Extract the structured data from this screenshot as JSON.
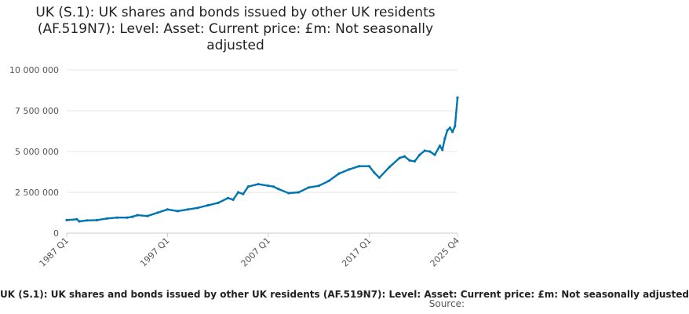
{
  "chart_data": {
    "type": "line",
    "title": "UK (S.1): UK shares and bonds issued by other UK residents (AF.519N7): Level: Asset: Current price: £m: Not seasonally adjusted",
    "xlabel": "",
    "ylabel": "",
    "ylim": [
      0,
      10000000
    ],
    "y_ticks": [
      0,
      2500000,
      5000000,
      7500000,
      10000000
    ],
    "y_tick_labels": [
      "0",
      "2 500 000",
      "5 000 000",
      "7 500 000",
      "10 000 000"
    ],
    "x_range": [
      "1987 Q1",
      "2025 Q4"
    ],
    "x_tick_labels": [
      "1987 Q1",
      "1997 Q1",
      "2007 Q1",
      "2017 Q1",
      "2025 Q4"
    ],
    "grid": true,
    "line_color": "#0075b0",
    "series": [
      {
        "name": "UK (S.1): UK shares and bonds issued by other UK residents (AF.519N7): Level: Asset: Current price: £m: Not seasonally adjusted",
        "points": [
          [
            "1987 Q1",
            800000
          ],
          [
            "1988 Q1",
            850000
          ],
          [
            "1988 Q2",
            720000
          ],
          [
            "1989 Q1",
            780000
          ],
          [
            "1990 Q1",
            800000
          ],
          [
            "1991 Q1",
            900000
          ],
          [
            "1992 Q1",
            950000
          ],
          [
            "1993 Q1",
            950000
          ],
          [
            "1993 Q3",
            1000000
          ],
          [
            "1994 Q1",
            1100000
          ],
          [
            "1995 Q1",
            1050000
          ],
          [
            "1996 Q1",
            1250000
          ],
          [
            "1997 Q1",
            1450000
          ],
          [
            "1998 Q1",
            1350000
          ],
          [
            "1999 Q1",
            1450000
          ],
          [
            "2000 Q1",
            1550000
          ],
          [
            "2001 Q1",
            1700000
          ],
          [
            "2002 Q1",
            1850000
          ],
          [
            "2003 Q1",
            2150000
          ],
          [
            "2003 Q3",
            2050000
          ],
          [
            "2004 Q1",
            2500000
          ],
          [
            "2004 Q3",
            2400000
          ],
          [
            "2005 Q1",
            2850000
          ],
          [
            "2006 Q1",
            3000000
          ],
          [
            "2007 Q1",
            2900000
          ],
          [
            "2007 Q3",
            2850000
          ],
          [
            "2008 Q1",
            2700000
          ],
          [
            "2009 Q1",
            2450000
          ],
          [
            "2010 Q1",
            2500000
          ],
          [
            "2011 Q1",
            2800000
          ],
          [
            "2012 Q1",
            2900000
          ],
          [
            "2013 Q1",
            3200000
          ],
          [
            "2014 Q1",
            3650000
          ],
          [
            "2015 Q1",
            3900000
          ],
          [
            "2016 Q1",
            4100000
          ],
          [
            "2017 Q1",
            4100000
          ],
          [
            "2017 Q3",
            3700000
          ],
          [
            "2018 Q1",
            3400000
          ],
          [
            "2019 Q1",
            4050000
          ],
          [
            "2020 Q1",
            4600000
          ],
          [
            "2020 Q3",
            4700000
          ],
          [
            "2021 Q1",
            4450000
          ],
          [
            "2021 Q3",
            4400000
          ],
          [
            "2022 Q1",
            4800000
          ],
          [
            "2022 Q3",
            5050000
          ],
          [
            "2023 Q1",
            5000000
          ],
          [
            "2023 Q3",
            4800000
          ],
          [
            "2024 Q1",
            5350000
          ],
          [
            "2024 Q2",
            5100000
          ],
          [
            "2024 Q3",
            5800000
          ],
          [
            "2024 Q4",
            6300000
          ],
          [
            "2025 Q1",
            6450000
          ],
          [
            "2025 Q2",
            6200000
          ],
          [
            "2025 Q3",
            6550000
          ],
          [
            "2025 Q4",
            8300000
          ]
        ]
      }
    ],
    "legend_text": "UK (S.1): UK shares and bonds issued by other UK residents (AF.519N7): Level: Asset: Current price: £m: Not seasonally adjusted",
    "source_label": "Source:"
  }
}
